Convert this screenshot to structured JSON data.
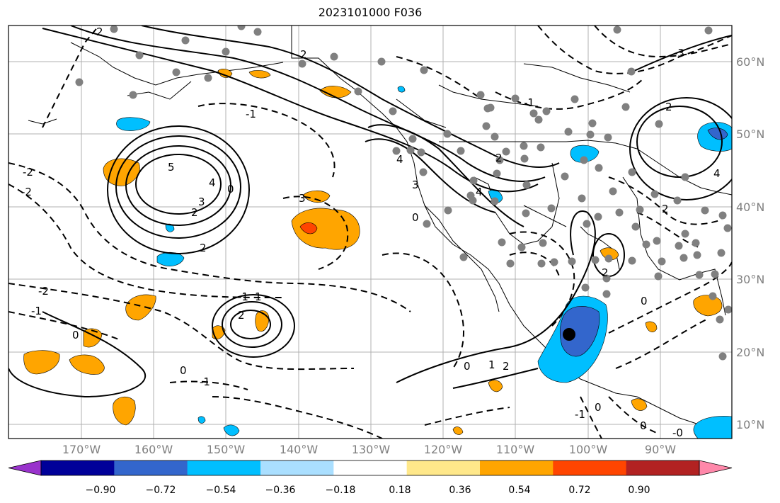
{
  "title": "2023101000 F036",
  "map": {
    "lat_labels": [
      "60°N",
      "50°N",
      "40°N",
      "30°N",
      "20°N",
      "10°N"
    ],
    "lon_labels": [
      "170°W",
      "160°W",
      "150°W",
      "140°W",
      "130°W",
      "120°W",
      "110°W",
      "100°W",
      "90°W"
    ],
    "grid": true,
    "marker": "black-dot"
  },
  "colorbar": {
    "tick_labels": [
      "−0.90",
      "−0.72",
      "−0.54",
      "−0.36",
      "−0.18",
      "0.18",
      "0.36",
      "0.54",
      "0.72",
      "0.90"
    ],
    "colors": [
      "#9933cc",
      "#000099",
      "#3366cc",
      "#00bfff",
      "#aadfff",
      "#ffffff",
      "#ffe88a",
      "#ffa500",
      "#ff4500",
      "#b22222",
      "#ff88aa"
    ]
  },
  "contour_labels": [
    "2",
    "5",
    "4",
    "3",
    "2",
    "0",
    "2",
    "-1",
    "3",
    "-2",
    "-1",
    "0",
    "1",
    "2",
    "-1",
    "0",
    "-1",
    "0",
    "1",
    "2",
    "-2",
    "-3",
    "4",
    "2",
    "2",
    "0",
    "4",
    "2",
    "-2",
    "0",
    "-1",
    "2",
    "4",
    "0",
    "3",
    "2",
    "-1",
    "0",
    "-0"
  ]
}
